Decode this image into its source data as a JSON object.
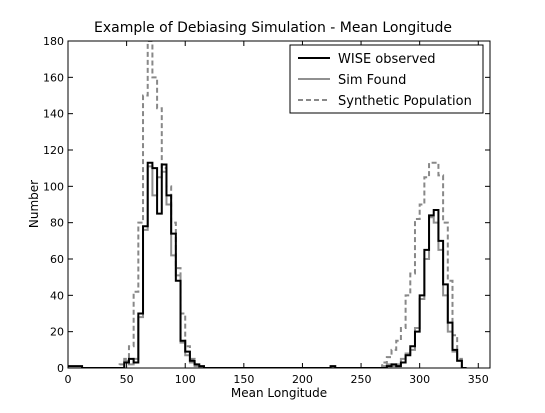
{
  "chart_data": {
    "type": "line",
    "step": true,
    "title": "Example of Debiasing Simulation - Mean Longitude",
    "xlabel": "Mean Longitude",
    "ylabel": "Number",
    "xlim": [
      0,
      360
    ],
    "ylim": [
      0,
      180
    ],
    "xticks": [
      0,
      50,
      100,
      150,
      200,
      250,
      300,
      350
    ],
    "yticks": [
      0,
      20,
      40,
      60,
      80,
      100,
      120,
      140,
      160,
      180
    ],
    "grid": false,
    "legend_position": "top-right",
    "bin_width": 4,
    "series": [
      {
        "name": "WISE observed",
        "color": "#000000",
        "style": "solid",
        "points": [
          [
            0,
            1
          ],
          [
            8,
            1
          ],
          [
            12,
            0
          ],
          [
            44,
            0
          ],
          [
            48,
            3
          ],
          [
            52,
            5
          ],
          [
            56,
            3
          ],
          [
            60,
            30
          ],
          [
            64,
            78
          ],
          [
            68,
            113
          ],
          [
            72,
            110
          ],
          [
            76,
            85
          ],
          [
            80,
            112
          ],
          [
            84,
            95
          ],
          [
            88,
            74
          ],
          [
            92,
            48
          ],
          [
            96,
            15
          ],
          [
            100,
            9
          ],
          [
            104,
            4
          ],
          [
            108,
            2
          ],
          [
            112,
            1
          ],
          [
            116,
            0
          ],
          [
            220,
            0
          ],
          [
            224,
            1
          ],
          [
            228,
            0
          ],
          [
            268,
            0
          ],
          [
            272,
            1
          ],
          [
            276,
            2
          ],
          [
            280,
            1
          ],
          [
            284,
            3
          ],
          [
            288,
            7
          ],
          [
            292,
            12
          ],
          [
            296,
            20
          ],
          [
            300,
            40
          ],
          [
            304,
            65
          ],
          [
            308,
            84
          ],
          [
            312,
            87
          ],
          [
            316,
            70
          ],
          [
            320,
            46
          ],
          [
            324,
            25
          ],
          [
            328,
            10
          ],
          [
            332,
            4
          ],
          [
            336,
            0
          ]
        ]
      },
      {
        "name": "Sim Found",
        "color": "#909090",
        "style": "solid",
        "points": [
          [
            44,
            0
          ],
          [
            48,
            4
          ],
          [
            52,
            2
          ],
          [
            56,
            5
          ],
          [
            60,
            28
          ],
          [
            64,
            76
          ],
          [
            68,
            111
          ],
          [
            72,
            95
          ],
          [
            76,
            105
          ],
          [
            80,
            108
          ],
          [
            84,
            90
          ],
          [
            88,
            62
          ],
          [
            92,
            51
          ],
          [
            96,
            14
          ],
          [
            100,
            7
          ],
          [
            104,
            3
          ],
          [
            108,
            1
          ],
          [
            112,
            0
          ],
          [
            264,
            0
          ],
          [
            268,
            1
          ],
          [
            272,
            2
          ],
          [
            276,
            1
          ],
          [
            280,
            2
          ],
          [
            284,
            5
          ],
          [
            288,
            8
          ],
          [
            292,
            10
          ],
          [
            296,
            22
          ],
          [
            300,
            38
          ],
          [
            304,
            60
          ],
          [
            308,
            83
          ],
          [
            312,
            80
          ],
          [
            316,
            65
          ],
          [
            320,
            40
          ],
          [
            324,
            20
          ],
          [
            328,
            9
          ],
          [
            332,
            4
          ],
          [
            336,
            0
          ]
        ]
      },
      {
        "name": "Synthetic Population",
        "color": "#888888",
        "style": "dashed",
        "points": [
          [
            40,
            0
          ],
          [
            44,
            2
          ],
          [
            48,
            5
          ],
          [
            52,
            12
          ],
          [
            56,
            42
          ],
          [
            60,
            80
          ],
          [
            64,
            150
          ],
          [
            68,
            180
          ],
          [
            72,
            160
          ],
          [
            76,
            143
          ],
          [
            80,
            110
          ],
          [
            84,
            100
          ],
          [
            88,
            80
          ],
          [
            92,
            55
          ],
          [
            96,
            30
          ],
          [
            100,
            12
          ],
          [
            104,
            5
          ],
          [
            108,
            2
          ],
          [
            112,
            0
          ],
          [
            264,
            0
          ],
          [
            268,
            3
          ],
          [
            272,
            6
          ],
          [
            276,
            10
          ],
          [
            280,
            15
          ],
          [
            284,
            22
          ],
          [
            288,
            40
          ],
          [
            292,
            52
          ],
          [
            296,
            82
          ],
          [
            300,
            90
          ],
          [
            304,
            105
          ],
          [
            308,
            113
          ],
          [
            312,
            113
          ],
          [
            316,
            106
          ],
          [
            320,
            80
          ],
          [
            324,
            48
          ],
          [
            328,
            18
          ],
          [
            332,
            5
          ],
          [
            336,
            0
          ]
        ]
      }
    ]
  }
}
